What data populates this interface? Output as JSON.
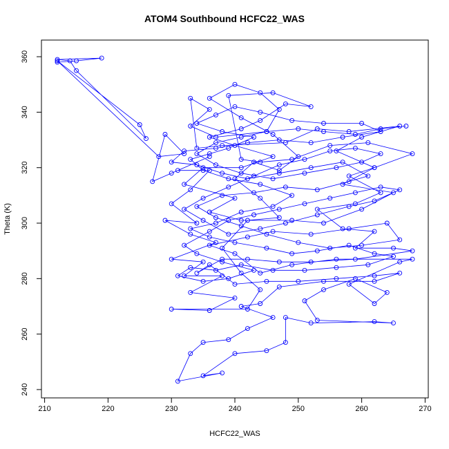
{
  "chart_data": {
    "type": "line",
    "title": "ATOM4 Southbound HCFC22_WAS",
    "xlabel": "HCFC22_WAS",
    "ylabel": "Theta (K)",
    "xlim": [
      209.5,
      270.5
    ],
    "ylim": [
      237,
      366
    ],
    "x_ticks": [
      210,
      220,
      230,
      240,
      250,
      260,
      270
    ],
    "y_ticks": [
      240,
      260,
      280,
      300,
      320,
      340,
      360
    ],
    "grid": false,
    "legend": "none",
    "color": "#0000ff",
    "series": [
      {
        "points": [
          [
            212,
            358
          ],
          [
            215,
            358.5
          ],
          [
            219,
            359.5
          ],
          [
            212,
            359
          ],
          [
            214,
            358.5
          ],
          [
            215,
            355
          ],
          [
            226,
            330.5
          ],
          [
            225,
            335.5
          ],
          [
            212,
            358.5
          ],
          [
            228,
            324
          ],
          [
            232,
            325
          ],
          [
            229,
            332
          ],
          [
            227,
            315
          ],
          [
            230,
            318
          ],
          [
            236,
            324
          ],
          [
            231,
            319
          ],
          [
            236,
            319
          ],
          [
            233,
            312
          ],
          [
            230,
            307
          ],
          [
            234,
            300
          ],
          [
            229,
            301
          ],
          [
            233,
            296
          ],
          [
            237,
            293
          ],
          [
            230,
            287
          ],
          [
            235,
            286
          ],
          [
            232,
            281
          ],
          [
            238,
            281
          ],
          [
            233,
            275
          ],
          [
            240,
            273
          ],
          [
            236,
            268.5
          ],
          [
            230,
            269
          ],
          [
            242,
            269
          ],
          [
            244,
            276
          ],
          [
            241,
            282
          ],
          [
            238,
            291
          ],
          [
            242,
            301
          ],
          [
            247,
            302
          ],
          [
            244,
            309
          ],
          [
            240,
            316
          ],
          [
            243,
            322
          ],
          [
            247,
            319
          ],
          [
            250,
            324
          ],
          [
            246,
            332
          ],
          [
            241,
            338
          ],
          [
            236,
            345
          ],
          [
            240,
            350
          ],
          [
            244,
            347
          ],
          [
            247,
            341
          ],
          [
            245,
            333
          ],
          [
            237,
            331
          ],
          [
            233,
            335
          ],
          [
            236,
            341
          ],
          [
            233,
            345
          ],
          [
            234,
            327
          ],
          [
            238,
            328
          ],
          [
            248,
            329
          ],
          [
            253,
            334
          ],
          [
            258,
            333
          ],
          [
            266,
            335
          ],
          [
            260,
            331
          ],
          [
            256,
            326
          ],
          [
            262,
            320
          ],
          [
            257,
            314
          ],
          [
            265,
            311
          ],
          [
            260,
            305
          ],
          [
            254,
            300
          ],
          [
            249,
            301
          ],
          [
            241,
            301
          ],
          [
            236,
            304
          ],
          [
            240,
            309
          ],
          [
            232,
            314
          ],
          [
            235,
            320
          ],
          [
            241,
            320
          ],
          [
            246,
            324
          ],
          [
            240,
            328
          ],
          [
            236,
            331
          ],
          [
            241,
            334
          ],
          [
            244,
            337
          ],
          [
            248,
            343
          ],
          [
            252,
            342
          ],
          [
            246,
            347
          ],
          [
            239,
            346
          ],
          [
            241,
            323
          ],
          [
            244,
            322
          ],
          [
            249,
            323
          ],
          [
            255,
            328
          ],
          [
            261,
            329
          ],
          [
            268,
            325
          ],
          [
            262,
            320
          ],
          [
            258,
            317
          ],
          [
            263,
            311
          ],
          [
            259,
            307
          ],
          [
            253,
            305
          ],
          [
            257,
            298
          ],
          [
            262,
            297
          ],
          [
            259,
            291
          ],
          [
            265,
            291
          ],
          [
            268,
            290
          ],
          [
            259,
            287
          ],
          [
            252,
            286
          ],
          [
            247,
            286
          ],
          [
            242,
            287
          ],
          [
            238,
            287
          ],
          [
            234,
            282
          ],
          [
            236,
            285
          ],
          [
            240,
            278
          ],
          [
            245,
            279
          ],
          [
            250,
            279
          ],
          [
            256,
            280
          ],
          [
            262,
            281
          ],
          [
            266,
            282
          ],
          [
            262,
            279
          ],
          [
            254,
            279
          ],
          [
            247,
            277
          ],
          [
            244,
            271
          ],
          [
            241,
            270
          ],
          [
            246,
            266
          ],
          [
            242,
            262
          ],
          [
            239,
            258
          ],
          [
            235,
            257
          ],
          [
            233,
            253
          ],
          [
            231,
            243
          ],
          [
            238,
            246
          ],
          [
            235,
            245
          ],
          [
            240,
            253
          ],
          [
            245,
            254
          ],
          [
            248,
            257
          ],
          [
            248,
            266
          ],
          [
            252,
            264
          ],
          [
            262,
            264.5
          ],
          [
            265,
            264
          ],
          [
            253,
            265
          ],
          [
            251,
            272
          ],
          [
            254,
            276
          ],
          [
            259,
            280
          ],
          [
            264,
            275
          ],
          [
            262,
            271
          ],
          [
            258,
            278
          ],
          [
            266,
            286
          ],
          [
            268,
            287
          ],
          [
            256,
            287
          ],
          [
            249,
            285
          ],
          [
            244,
            282
          ],
          [
            240,
            289
          ],
          [
            236,
            292
          ],
          [
            242,
            295
          ],
          [
            246,
            297
          ],
          [
            252,
            296
          ],
          [
            258,
            298
          ],
          [
            264,
            300
          ],
          [
            266,
            294
          ],
          [
            260,
            292
          ],
          [
            255,
            291
          ],
          [
            250,
            293
          ],
          [
            245,
            296
          ],
          [
            241,
            299
          ],
          [
            237,
            302
          ],
          [
            234,
            306
          ],
          [
            238,
            310
          ],
          [
            243,
            311
          ],
          [
            248,
            313
          ],
          [
            253,
            312
          ],
          [
            258,
            315
          ],
          [
            261,
            317
          ],
          [
            257,
            322
          ],
          [
            252,
            320
          ],
          [
            247,
            318
          ],
          [
            242,
            316
          ],
          [
            238,
            318
          ],
          [
            234,
            321
          ],
          [
            230,
            322
          ],
          [
            232,
            326
          ],
          [
            237,
            327
          ],
          [
            242,
            329
          ],
          [
            247,
            330
          ],
          [
            252,
            329
          ],
          [
            257,
            331
          ],
          [
            263,
            333
          ],
          [
            260,
            336
          ],
          [
            254,
            336
          ],
          [
            249,
            337
          ],
          [
            244,
            340
          ],
          [
            240,
            342
          ],
          [
            237,
            339
          ],
          [
            234,
            336
          ],
          [
            238,
            333
          ],
          [
            243,
            331
          ],
          [
            239,
            327
          ],
          [
            236,
            325
          ],
          [
            233,
            323
          ],
          [
            235,
            319
          ],
          [
            239,
            316
          ],
          [
            244,
            314
          ],
          [
            249,
            310
          ],
          [
            246,
            306
          ],
          [
            241,
            304
          ],
          [
            237,
            300
          ],
          [
            233,
            298
          ],
          [
            236,
            295
          ],
          [
            240,
            293
          ],
          [
            245,
            291
          ],
          [
            249,
            289
          ],
          [
            253,
            290
          ],
          [
            258,
            292
          ],
          [
            262,
            289
          ],
          [
            265,
            288
          ],
          [
            261,
            285
          ],
          [
            256,
            284
          ],
          [
            251,
            283
          ],
          [
            246,
            283
          ],
          [
            241,
            285
          ],
          [
            237,
            283
          ],
          [
            233,
            284
          ],
          [
            231,
            281
          ],
          [
            235,
            279
          ],
          [
            239,
            280
          ],
          [
            243,
            283
          ],
          [
            238,
            286
          ],
          [
            234,
            289
          ],
          [
            232,
            292
          ],
          [
            236,
            297
          ],
          [
            239,
            301
          ],
          [
            243,
            303
          ],
          [
            247,
            305
          ],
          [
            251,
            307
          ],
          [
            255,
            309
          ],
          [
            259,
            311
          ],
          [
            263,
            313
          ],
          [
            266,
            312
          ],
          [
            262,
            308
          ],
          [
            258,
            306
          ],
          [
            253,
            303
          ],
          [
            248,
            300
          ],
          [
            244,
            298
          ],
          [
            239,
            296
          ],
          [
            235,
            301
          ],
          [
            232,
            305
          ],
          [
            235,
            309
          ],
          [
            239,
            313
          ],
          [
            243,
            317
          ],
          [
            247,
            321
          ],
          [
            251,
            323
          ],
          [
            255,
            326
          ],
          [
            259,
            327
          ],
          [
            263,
            325
          ],
          [
            260,
            322
          ],
          [
            256,
            320
          ],
          [
            251,
            318
          ],
          [
            246,
            316
          ],
          [
            241,
            318
          ],
          [
            237,
            321
          ],
          [
            234,
            325
          ],
          [
            237,
            329
          ],
          [
            241,
            331
          ],
          [
            245,
            333
          ],
          [
            250,
            334
          ],
          [
            254,
            333
          ],
          [
            259,
            332
          ],
          [
            263,
            334
          ],
          [
            267,
            335
          ]
        ]
      }
    ]
  }
}
